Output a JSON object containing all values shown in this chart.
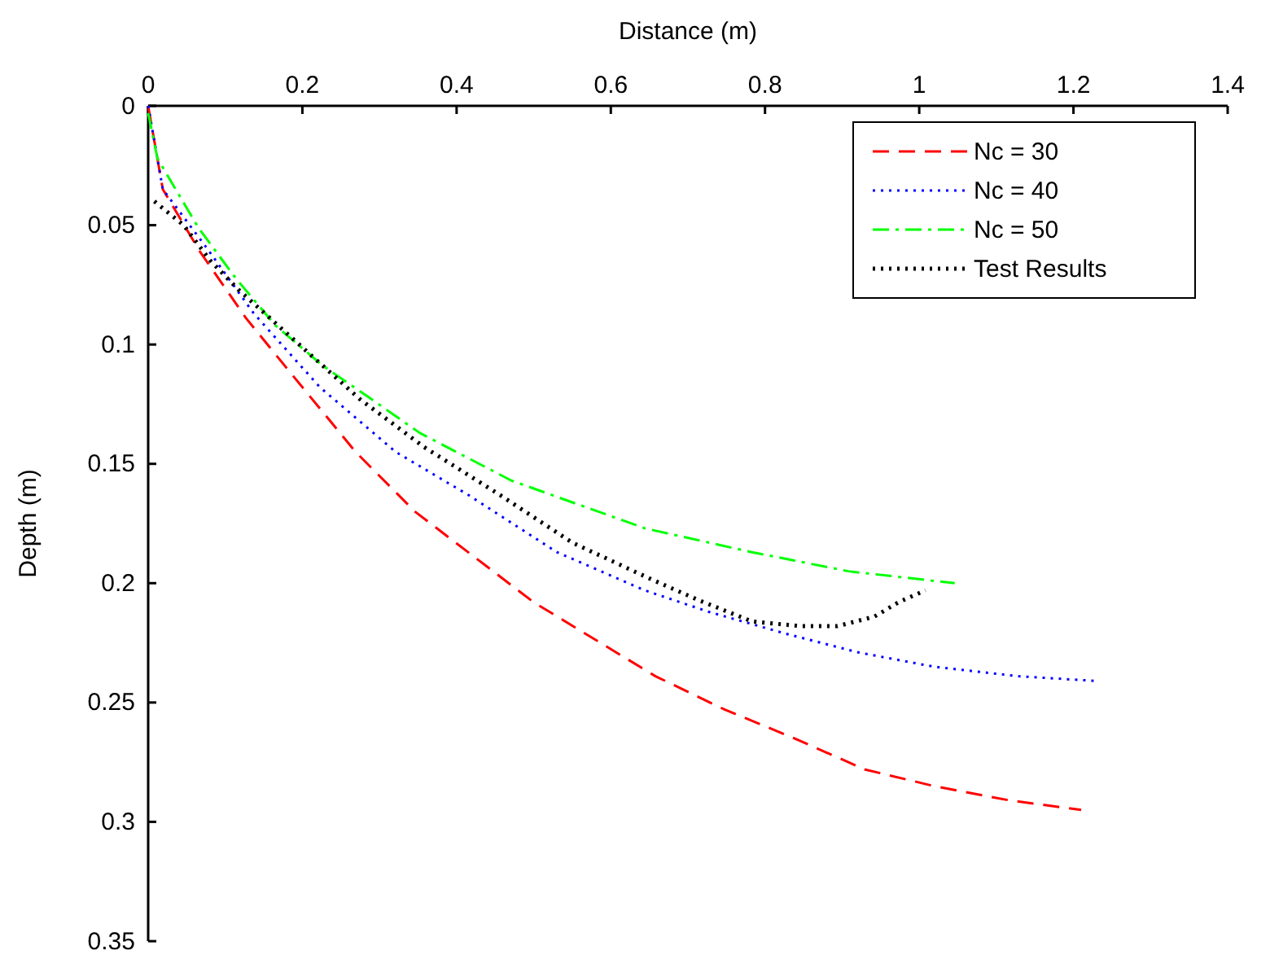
{
  "chart_data": {
    "type": "line",
    "xlabel": "Distance (m)",
    "ylabel": "Depth (m)",
    "xlim": [
      0,
      1.4
    ],
    "xticks": [
      0,
      0.2,
      0.4,
      0.6,
      0.8,
      1,
      1.2,
      1.4
    ],
    "ylim": [
      0.35,
      0
    ],
    "yticks": [
      0,
      0.05,
      0.1,
      0.15,
      0.2,
      0.25,
      0.3,
      0.35
    ],
    "grid": false,
    "legend": "top right",
    "marker": "none",
    "series": [
      {
        "name": "Nc = 30",
        "color": "#ff0000",
        "line_style": "dashed",
        "x": [
          0,
          0.019,
          0.067,
          0.127,
          0.185,
          0.269,
          0.346,
          0.5,
          0.658,
          0.748,
          0.838,
          0.929,
          1.019,
          1.117,
          1.21
        ],
        "values": [
          0,
          0.035,
          0.061,
          0.089,
          0.112,
          0.145,
          0.17,
          0.208,
          0.239,
          0.253,
          0.265,
          0.278,
          0.285,
          0.291,
          0.295
        ]
      },
      {
        "name": "Nc = 40",
        "color": "#0000ff",
        "line_style": "dotted",
        "x": [
          0,
          0.019,
          0.077,
          0.137,
          0.223,
          0.321,
          0.415,
          0.53,
          0.644,
          0.727,
          0.825,
          0.921,
          1.019,
          1.129,
          1.231
        ],
        "values": [
          0,
          0.035,
          0.06,
          0.087,
          0.118,
          0.145,
          0.163,
          0.187,
          0.203,
          0.212,
          0.221,
          0.229,
          0.235,
          0.239,
          0.241
        ]
      },
      {
        "name": "Nc = 50",
        "color": "#00ff00",
        "line_style": "dashdot",
        "x": [
          0,
          0.012,
          0.065,
          0.113,
          0.165,
          0.227,
          0.29,
          0.352,
          0.471,
          0.575,
          0.644,
          0.783,
          0.908,
          1.046
        ],
        "values": [
          0.003,
          0.022,
          0.051,
          0.072,
          0.092,
          0.109,
          0.123,
          0.137,
          0.157,
          0.169,
          0.177,
          0.187,
          0.195,
          0.2
        ]
      },
      {
        "name": "Test Results",
        "color": "#000000",
        "line_style": "dotted",
        "x": [
          0.008,
          0.046,
          0.081,
          0.117,
          0.165,
          0.213,
          0.275,
          0.358,
          0.456,
          0.55,
          0.65,
          0.713,
          0.783,
          0.846,
          0.894,
          0.942,
          0.973,
          1.008
        ],
        "values": [
          0.04,
          0.05,
          0.065,
          0.077,
          0.091,
          0.105,
          0.123,
          0.143,
          0.163,
          0.183,
          0.198,
          0.207,
          0.216,
          0.218,
          0.218,
          0.214,
          0.208,
          0.203
        ]
      }
    ]
  }
}
